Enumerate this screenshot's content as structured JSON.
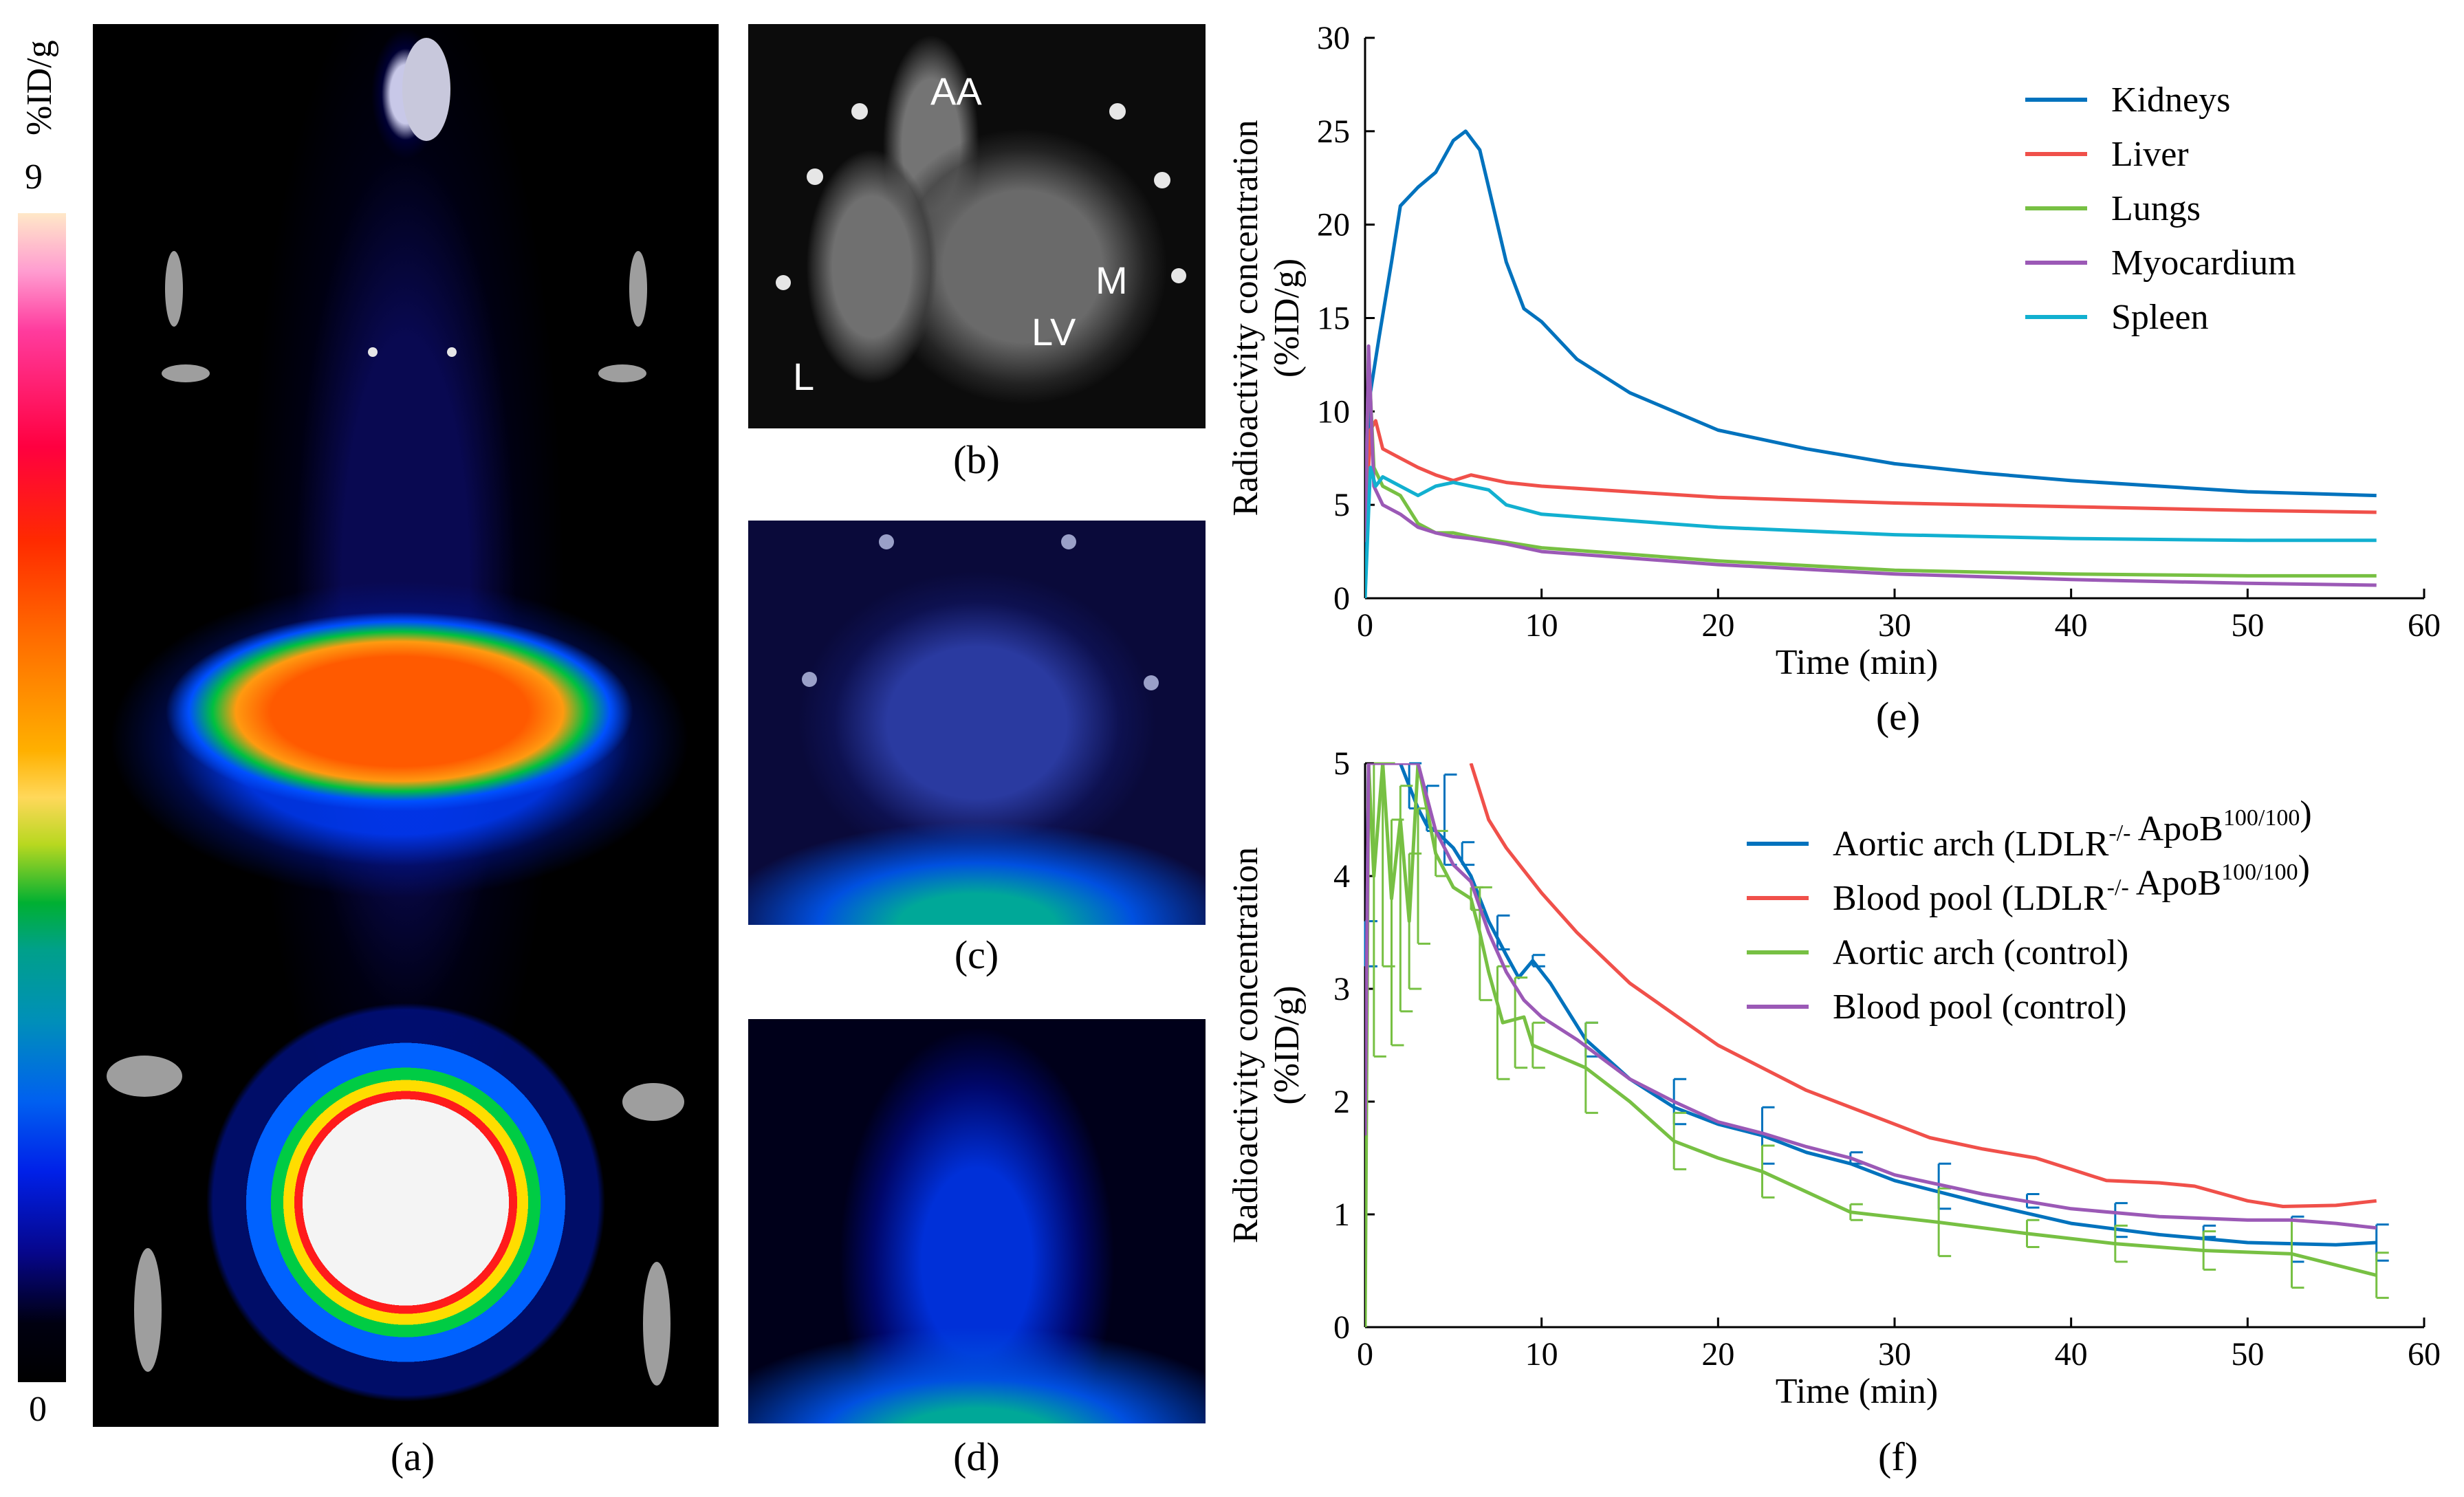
{
  "figure": {
    "colorbar": {
      "unit": "%ID/g",
      "max_label": "9",
      "min_label": "0"
    },
    "panels": {
      "a": {
        "caption": "(a)"
      },
      "b": {
        "caption": "(b)",
        "annotations": [
          "AA",
          "M",
          "LV",
          "L"
        ]
      },
      "c": {
        "caption": "(c)"
      },
      "d": {
        "caption": "(d)"
      },
      "e": {
        "caption": "(e)"
      },
      "f": {
        "caption": "(f)"
      }
    }
  },
  "colors": {
    "blue": "#0072bd",
    "red": "#f0504a",
    "green": "#77c043",
    "purple": "#9b59b6",
    "cyan": "#12b0d0"
  },
  "chart_data": [
    {
      "id": "e",
      "type": "line",
      "xlabel": "Time (min)",
      "ylabel": "Radioactivity concentration",
      "ylabel2": "(%ID/g)",
      "xlim": [
        0,
        60
      ],
      "ylim": [
        0,
        30
      ],
      "xticks": [
        0,
        10,
        20,
        30,
        40,
        50,
        60
      ],
      "yticks": [
        0,
        5,
        10,
        15,
        20,
        25,
        30
      ],
      "legend_position": "top-right",
      "series": [
        {
          "name": "Kidneys",
          "color": "#0072bd",
          "points": [
            [
              0,
              0
            ],
            [
              0.3,
              11
            ],
            [
              0.8,
              14
            ],
            [
              1.5,
              18
            ],
            [
              2,
              21
            ],
            [
              3,
              22
            ],
            [
              4,
              22.8
            ],
            [
              5,
              24.5
            ],
            [
              5.7,
              25
            ],
            [
              6.5,
              24
            ],
            [
              7,
              22
            ],
            [
              8,
              18
            ],
            [
              9,
              15.5
            ],
            [
              10,
              14.8
            ],
            [
              12,
              12.8
            ],
            [
              15,
              11
            ],
            [
              20,
              9
            ],
            [
              25,
              8
            ],
            [
              30,
              7.2
            ],
            [
              35,
              6.7
            ],
            [
              40,
              6.3
            ],
            [
              45,
              6
            ],
            [
              50,
              5.7
            ],
            [
              57.3,
              5.5
            ]
          ]
        },
        {
          "name": "Liver",
          "color": "#f0504a",
          "points": [
            [
              0,
              3
            ],
            [
              0.3,
              9
            ],
            [
              0.6,
              9.5
            ],
            [
              1,
              8
            ],
            [
              2,
              7.5
            ],
            [
              3,
              7
            ],
            [
              4,
              6.6
            ],
            [
              5,
              6.3
            ],
            [
              6,
              6.6
            ],
            [
              8,
              6.2
            ],
            [
              10,
              6
            ],
            [
              20,
              5.4
            ],
            [
              30,
              5.1
            ],
            [
              40,
              4.9
            ],
            [
              50,
              4.7
            ],
            [
              57.3,
              4.6
            ]
          ]
        },
        {
          "name": "Lungs",
          "color": "#77c043",
          "points": [
            [
              0,
              3
            ],
            [
              0.2,
              13
            ],
            [
              0.5,
              7
            ],
            [
              1,
              6
            ],
            [
              2,
              5.5
            ],
            [
              3,
              4
            ],
            [
              4,
              3.5
            ],
            [
              5,
              3.5
            ],
            [
              6,
              3.3
            ],
            [
              8,
              3
            ],
            [
              10,
              2.7
            ],
            [
              20,
              2
            ],
            [
              30,
              1.5
            ],
            [
              40,
              1.3
            ],
            [
              50,
              1.2
            ],
            [
              57.3,
              1.2
            ]
          ]
        },
        {
          "name": "Myocardium",
          "color": "#9b59b6",
          "points": [
            [
              0,
              3
            ],
            [
              0.2,
              13.5
            ],
            [
              0.5,
              6
            ],
            [
              1,
              5
            ],
            [
              2,
              4.5
            ],
            [
              3,
              3.8
            ],
            [
              4,
              3.5
            ],
            [
              5,
              3.3
            ],
            [
              6,
              3.2
            ],
            [
              8,
              2.9
            ],
            [
              10,
              2.5
            ],
            [
              20,
              1.8
            ],
            [
              30,
              1.3
            ],
            [
              40,
              1
            ],
            [
              50,
              0.8
            ],
            [
              57.3,
              0.7
            ]
          ]
        },
        {
          "name": "Spleen",
          "color": "#12b0d0",
          "points": [
            [
              0,
              0
            ],
            [
              0.3,
              7
            ],
            [
              0.6,
              6
            ],
            [
              1,
              6.5
            ],
            [
              2,
              6
            ],
            [
              3,
              5.5
            ],
            [
              4,
              6
            ],
            [
              5,
              6.2
            ],
            [
              6,
              6
            ],
            [
              7,
              5.8
            ],
            [
              8,
              5
            ],
            [
              10,
              4.5
            ],
            [
              20,
              3.8
            ],
            [
              30,
              3.4
            ],
            [
              40,
              3.2
            ],
            [
              50,
              3.1
            ],
            [
              57.3,
              3.1
            ]
          ]
        }
      ]
    },
    {
      "id": "f",
      "type": "line",
      "xlabel": "Time (min)",
      "ylabel": "Radioactivity concentration",
      "ylabel2": "(%ID/g)",
      "xlim": [
        0,
        60
      ],
      "ylim": [
        0,
        5
      ],
      "xticks": [
        0,
        10,
        20,
        30,
        40,
        50,
        60
      ],
      "yticks": [
        0,
        1,
        2,
        3,
        4,
        5
      ],
      "legend_position": "top-right",
      "legend": [
        {
          "text": "Aortic arch (LDLR",
          "sup1": "-/-",
          "mid": " ApoB",
          "sup2": "100/100",
          "end": ")"
        },
        {
          "text": "Blood pool (LDLR",
          "sup1": "-/-",
          "mid": " ApoB",
          "sup2": "100/100",
          "end": ")"
        },
        {
          "text": "Aortic arch (control)",
          "sup1": "",
          "mid": "",
          "sup2": "",
          "end": ""
        },
        {
          "text": "Blood pool (control)",
          "sup1": "",
          "mid": "",
          "sup2": "",
          "end": ""
        }
      ],
      "series": [
        {
          "name": "Aortic arch (LDLR-/- ApoB100/100)",
          "color": "#0072bd",
          "points": [
            [
              0,
              1.7
            ],
            [
              0.2,
              5
            ],
            [
              2,
              5
            ],
            [
              2.5,
              4.8
            ],
            [
              3,
              4.6
            ],
            [
              3.5,
              4.45
            ],
            [
              4,
              4.4
            ],
            [
              5,
              4.25
            ],
            [
              6,
              4
            ],
            [
              7,
              3.6
            ],
            [
              8,
              3.3
            ],
            [
              8.7,
              3.1
            ],
            [
              9.5,
              3.25
            ],
            [
              10.5,
              3.05
            ],
            [
              12.5,
              2.55
            ],
            [
              15,
              2.2
            ],
            [
              17.5,
              1.95
            ],
            [
              20,
              1.8
            ],
            [
              22.5,
              1.7
            ],
            [
              25,
              1.55
            ],
            [
              27.5,
              1.45
            ],
            [
              30,
              1.3
            ],
            [
              35,
              1.1
            ],
            [
              40,
              0.92
            ],
            [
              45,
              0.82
            ],
            [
              50,
              0.75
            ],
            [
              55,
              0.73
            ],
            [
              57.3,
              0.75
            ]
          ],
          "error_bars": [
            [
              0,
              3.4,
              0.2
            ],
            [
              2.5,
              4.8,
              0.2
            ],
            [
              3.5,
              4.6,
              0.2
            ],
            [
              4.5,
              4.5,
              0.4
            ],
            [
              5.5,
              4.2,
              0.1
            ],
            [
              7.5,
              3.5,
              0.15
            ],
            [
              9.5,
              3.25,
              0.05
            ],
            [
              12.5,
              2.55,
              0.15
            ],
            [
              17.5,
              2,
              0.2
            ],
            [
              22.5,
              1.7,
              0.25
            ],
            [
              27.5,
              1.5,
              0.05
            ],
            [
              32.5,
              1.25,
              0.2
            ],
            [
              37.5,
              1.12,
              0.06
            ],
            [
              42.5,
              0.95,
              0.15
            ],
            [
              47.5,
              0.85,
              0.05
            ],
            [
              52.5,
              0.78,
              0.2
            ],
            [
              57.3,
              0.75,
              0.16
            ]
          ]
        },
        {
          "name": "Blood pool (LDLR-/- ApoB100/100)",
          "color": "#f0504a",
          "points": [
            [
              6,
              5
            ],
            [
              7,
              4.5
            ],
            [
              8,
              4.25
            ],
            [
              9,
              4.05
            ],
            [
              10,
              3.85
            ],
            [
              12,
              3.5
            ],
            [
              15,
              3.05
            ],
            [
              20,
              2.5
            ],
            [
              25,
              2.1
            ],
            [
              30,
              1.8
            ],
            [
              32,
              1.68
            ],
            [
              35,
              1.58
            ],
            [
              38,
              1.5
            ],
            [
              40,
              1.4
            ],
            [
              42,
              1.3
            ],
            [
              45,
              1.28
            ],
            [
              47,
              1.25
            ],
            [
              50,
              1.12
            ],
            [
              52,
              1.07
            ],
            [
              55,
              1.08
            ],
            [
              57.3,
              1.12
            ]
          ]
        },
        {
          "name": "Aortic arch (control)",
          "color": "#77c043",
          "points": [
            [
              0,
              0
            ],
            [
              0.2,
              5
            ],
            [
              0.5,
              4
            ],
            [
              1,
              5
            ],
            [
              1.5,
              3.8
            ],
            [
              2,
              4.5
            ],
            [
              2.5,
              3.6
            ],
            [
              3,
              5
            ],
            [
              4,
              4.2
            ],
            [
              5,
              3.9
            ],
            [
              6,
              3.8
            ],
            [
              6.5,
              3.5
            ],
            [
              7,
              3.15
            ],
            [
              7.8,
              2.7
            ],
            [
              9,
              2.75
            ],
            [
              9.5,
              2.5
            ],
            [
              12.5,
              2.3
            ],
            [
              15,
              2
            ],
            [
              17.5,
              1.65
            ],
            [
              20,
              1.5
            ],
            [
              22.5,
              1.38
            ],
            [
              25,
              1.2
            ],
            [
              27.5,
              1.02
            ],
            [
              32.5,
              0.93
            ],
            [
              37.5,
              0.83
            ],
            [
              42.5,
              0.74
            ],
            [
              47.5,
              0.68
            ],
            [
              52.5,
              0.65
            ],
            [
              57.3,
              0.46
            ]
          ],
          "error_bars": [
            [
              0.5,
              3.8,
              1.4
            ],
            [
              1,
              4.2,
              1
            ],
            [
              1.5,
              3.5,
              1
            ],
            [
              2,
              3.8,
              1
            ],
            [
              2.5,
              3.6,
              0.6
            ],
            [
              3,
              4,
              0.6
            ],
            [
              4,
              4.2,
              0.2
            ],
            [
              6,
              3.8,
              0.1
            ],
            [
              6.5,
              3.4,
              0.5
            ],
            [
              7.5,
              2.7,
              0.5
            ],
            [
              8.5,
              2.7,
              0.4
            ],
            [
              9.5,
              2.5,
              0.2
            ],
            [
              12.5,
              2.3,
              0.4
            ],
            [
              17.5,
              1.65,
              0.25
            ],
            [
              22.5,
              1.38,
              0.23
            ],
            [
              27.5,
              1.02,
              0.07
            ],
            [
              32.5,
              0.93,
              0.3
            ],
            [
              37.5,
              0.83,
              0.12
            ],
            [
              42.5,
              0.74,
              0.16
            ],
            [
              47.5,
              0.68,
              0.17
            ],
            [
              52.5,
              0.65,
              0.3
            ],
            [
              57.3,
              0.46,
              0.2
            ]
          ]
        },
        {
          "name": "Blood pool (control)",
          "color": "#9b59b6",
          "points": [
            [
              0,
              1.7
            ],
            [
              0.2,
              5
            ],
            [
              3,
              5
            ],
            [
              4,
              4.4
            ],
            [
              5,
              4.1
            ],
            [
              6,
              3.95
            ],
            [
              7,
              3.5
            ],
            [
              8,
              3.15
            ],
            [
              9,
              2.9
            ],
            [
              10,
              2.75
            ],
            [
              12,
              2.55
            ],
            [
              15,
              2.2
            ],
            [
              17.5,
              2
            ],
            [
              20,
              1.82
            ],
            [
              22.5,
              1.72
            ],
            [
              25,
              1.6
            ],
            [
              27.5,
              1.5
            ],
            [
              30,
              1.35
            ],
            [
              35,
              1.18
            ],
            [
              40,
              1.05
            ],
            [
              45,
              0.98
            ],
            [
              50,
              0.95
            ],
            [
              52.5,
              0.95
            ],
            [
              55,
              0.92
            ],
            [
              57.3,
              0.88
            ]
          ]
        }
      ]
    }
  ]
}
